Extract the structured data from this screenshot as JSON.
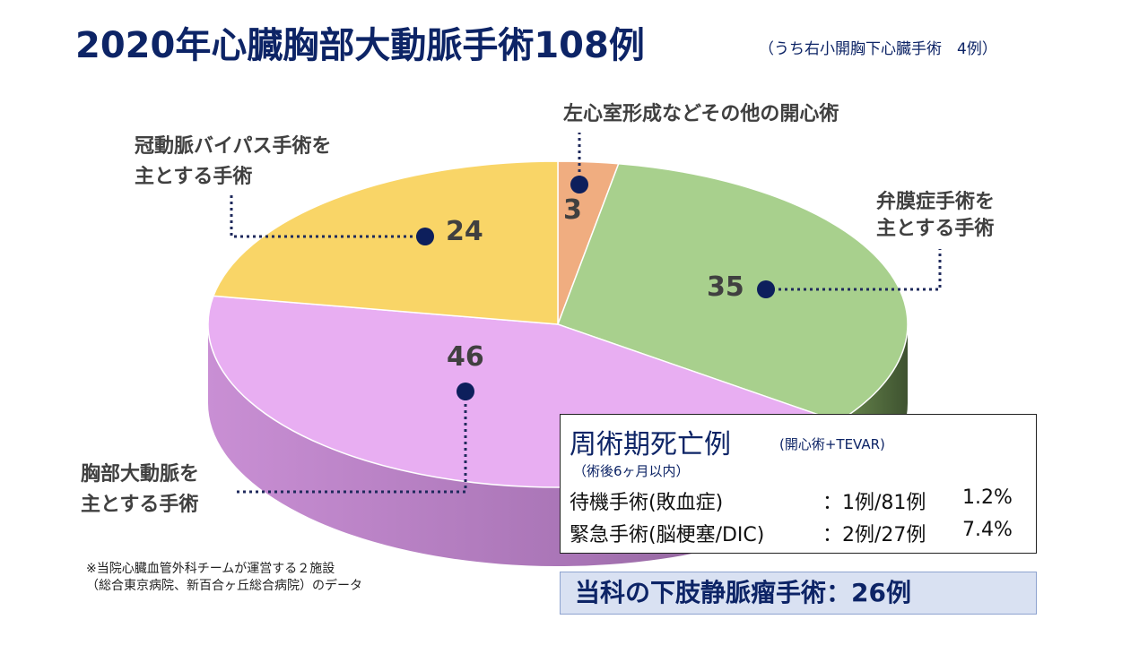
{
  "title": "2020年心臓胸部大動脈手術108例",
  "subtitle": "（うち右小開胸下心臓手術　4例）",
  "chart_data": {
    "type": "pie",
    "title": "2020年心臓胸部大動脈手術108例",
    "slices": [
      {
        "label": "左心室形成などその他の開心術",
        "value": 3,
        "color": "#f0ad80"
      },
      {
        "label": "弁膜症手術を主とする手術",
        "value": 35,
        "color": "#a8d08d"
      },
      {
        "label": "胸部大動脈を主とする手術",
        "value": 46,
        "color": "#e8aef2"
      },
      {
        "label": "冠動脈バイパス手術を主とする手術",
        "value": 24,
        "color": "#f9d567"
      }
    ]
  },
  "labels": {
    "other_line1": "左心室形成などその他の開心術",
    "valve_line1": "弁膜症手術を",
    "valve_line2": "主とする手術",
    "aorta_line1": "胸部大動脈を",
    "aorta_line2": "主とする手術",
    "cabg_line1": "冠動脈バイパス手術を",
    "cabg_line2": "主とする手術"
  },
  "mortality": {
    "title": "周術期死亡例",
    "subtitle": "(開心術+TEVAR)",
    "note": "（術後6ヶ月以内）",
    "rows": [
      {
        "label": "待機手術(敗血症)",
        "count": "：1例/81例",
        "rate": "1.2%"
      },
      {
        "label": "緊急手術(脳梗塞/DIC)",
        "count": "：2例/27例",
        "rate": "7.4%"
      }
    ]
  },
  "varicose": "当科の下肢静脈瘤手術：26例",
  "footnote": {
    "line1": "※当院心臓血管外科チームが運営する２施設",
    "line2": "（総合東京病院、新百合ヶ丘総合病院）のデータ"
  }
}
